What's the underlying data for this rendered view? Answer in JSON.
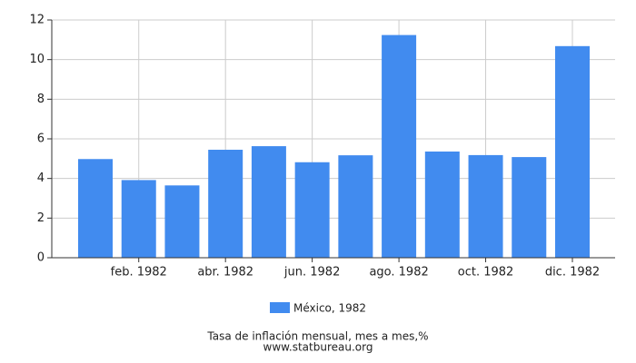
{
  "chart_data": {
    "type": "bar",
    "title": "Tasa de inflación mensual, mes a mes,%",
    "source": "www.statbureau.org",
    "categories": [
      null,
      "feb. 1982",
      null,
      "abr. 1982",
      null,
      "jun. 1982",
      null,
      "ago. 1982",
      null,
      "oct. 1982",
      null,
      "dic. 1982"
    ],
    "series": [
      {
        "name": "México, 1982",
        "color": "#418bef",
        "values": [
          4.98,
          3.92,
          3.65,
          5.45,
          5.63,
          4.82,
          5.17,
          11.24,
          5.36,
          5.18,
          5.08,
          10.68
        ]
      }
    ],
    "ylim": [
      0,
      12
    ],
    "yticks": [
      0,
      2,
      4,
      6,
      8,
      10,
      12
    ],
    "grid": true
  }
}
